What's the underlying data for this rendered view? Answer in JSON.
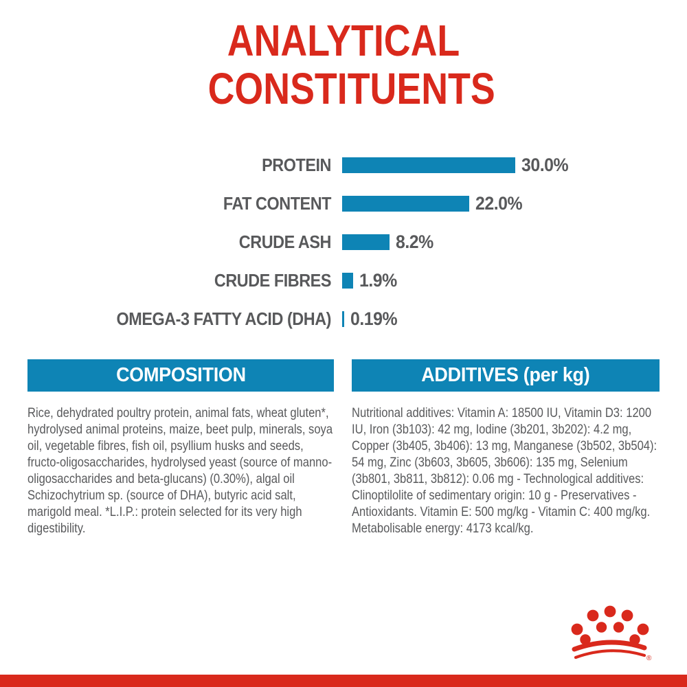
{
  "page": {
    "title": "ANALYTICAL CONSTITUENTS"
  },
  "chart_data": {
    "type": "bar",
    "orientation": "horizontal",
    "title": "ANALYTICAL CONSTITUENTS",
    "categories": [
      "PROTEIN",
      "FAT CONTENT",
      "CRUDE ASH",
      "CRUDE FIBRES",
      "OMEGA-3 FATTY ACID (DHA)"
    ],
    "values": [
      30.0,
      22.0,
      8.2,
      1.9,
      0.19
    ],
    "value_labels": [
      "30.0%",
      "22.0%",
      "8.2%",
      "1.9%",
      "0.19%"
    ],
    "unit": "%",
    "xlim": [
      0,
      30
    ],
    "grid": false,
    "legend": false,
    "bar_color": "#0e84b5",
    "label_color": "#58595b"
  },
  "sections": {
    "composition": {
      "header": "COMPOSITION",
      "body": "Rice, dehydrated poultry protein, animal fats, wheat gluten*, hydrolysed animal proteins, maize, beet pulp, minerals, soya oil, vegetable fibres, fish oil, psyllium husks and seeds, fructo-oligosaccharides, hydrolysed yeast (source of manno-oligosaccharides and beta-glucans) (0.30%), algal oil Schizochytrium sp. (source of DHA), butyric acid salt, marigold meal. *L.I.P.: protein selected for its very high digestibility."
    },
    "additives": {
      "header": "ADDITIVES (per kg)",
      "body": "Nutritional additives: Vitamin A: 18500 IU, Vitamin D3: 1200 IU, Iron (3b103): 42 mg, Iodine (3b201, 3b202): 4.2 mg, Copper (3b405, 3b406): 13 mg, Manganese (3b502, 3b504): 54 mg, Zinc (3b603, 3b605, 3b606): 135 mg, Selenium (3b801, 3b811, 3b812): 0.06 mg - Technological additives: Clinoptilolite of sedimentary origin: 10 g - Preservatives - Antioxidants. Vitamin E: 500 mg/kg - Vitamin C: 400 mg/kg. Metabolisable energy: 4173 kcal/kg."
    }
  },
  "branding": {
    "logo_name": "royal-canin-crown",
    "registered_mark": "®"
  },
  "colors": {
    "brand_red": "#d9291c",
    "accent_blue": "#0e84b5",
    "text_gray": "#58595b",
    "background": "#ffffff"
  }
}
